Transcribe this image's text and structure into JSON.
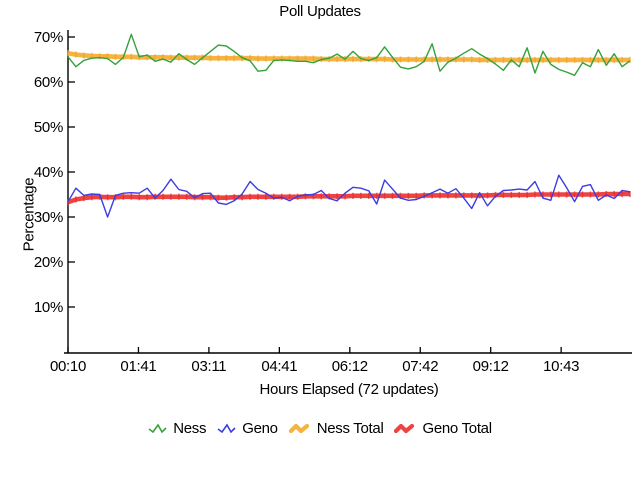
{
  "title": "Poll Updates",
  "chart_data": {
    "type": "line",
    "title": "Poll Updates",
    "xlabel": "Hours Elapsed (72 updates)",
    "ylabel": "Percentage",
    "x_tick_labels": [
      "00:10",
      "01:41",
      "03:11",
      "04:41",
      "06:12",
      "07:42",
      "09:12",
      "10:43"
    ],
    "y_ticks": [
      10,
      20,
      30,
      40,
      50,
      60,
      70
    ],
    "y_tick_suffix": "%",
    "ylim": [
      0,
      71.8
    ],
    "grid": false,
    "legend_position": "bottom",
    "axis_color": "#000000",
    "series": [
      {
        "name": "Ness",
        "color": "#35a13b",
        "style": "thin",
        "values": [
          65.6,
          63.4,
          64.8,
          65.3,
          65.4,
          65.2,
          63.9,
          65.5,
          70.6,
          65.6,
          66.0,
          64.6,
          65.1,
          64.4,
          66.3,
          65.0,
          63.9,
          65.4,
          66.8,
          68.2,
          68.0,
          66.8,
          65.4,
          64.7,
          62.4,
          62.6,
          64.8,
          64.9,
          64.8,
          64.6,
          64.6,
          64.3,
          65.0,
          65.3,
          66.2,
          65.1,
          66.8,
          65.2,
          64.8,
          65.4,
          67.8,
          65.5,
          63.3,
          62.9,
          63.4,
          64.6,
          68.5,
          62.4,
          64.4,
          65.3,
          66.4,
          67.4,
          66.2,
          65.2,
          64.0,
          62.6,
          64.9,
          63.4,
          67.6,
          62.0,
          66.8,
          63.9,
          62.8,
          62.2,
          61.5,
          64.3,
          63.4,
          67.2,
          63.7,
          66.3,
          63.4,
          64.7
        ]
      },
      {
        "name": "Geno",
        "color": "#3c3ce2",
        "style": "thin",
        "values": [
          33.4,
          36.4,
          34.8,
          35.1,
          35.0,
          30.0,
          34.8,
          35.3,
          35.4,
          35.3,
          36.4,
          34.2,
          35.9,
          38.4,
          36.1,
          35.7,
          34.3,
          35.2,
          35.3,
          33.1,
          32.8,
          33.6,
          35.1,
          37.9,
          36.1,
          35.3,
          34.2,
          34.4,
          33.6,
          34.6,
          34.9,
          35.0,
          35.9,
          34.1,
          33.6,
          35.3,
          36.6,
          36.4,
          35.8,
          32.9,
          38.2,
          36.2,
          34.2,
          33.7,
          33.9,
          34.6,
          35.4,
          36.2,
          35.3,
          36.3,
          34.2,
          31.9,
          35.4,
          32.5,
          34.6,
          35.9,
          36.0,
          36.2,
          36.0,
          37.9,
          34.2,
          33.7,
          39.3,
          36.5,
          33.4,
          36.8,
          37.2,
          33.7,
          34.9,
          34.1,
          35.9,
          35.6
        ]
      },
      {
        "name": "Ness Total",
        "color": "#f6b33f",
        "marker_color": "#efa42c",
        "style": "thick",
        "values": [
          66.4,
          66.1,
          65.9,
          65.8,
          65.7,
          65.7,
          65.6,
          65.6,
          65.6,
          65.5,
          65.5,
          65.5,
          65.5,
          65.4,
          65.4,
          65.4,
          65.4,
          65.4,
          65.3,
          65.3,
          65.3,
          65.3,
          65.3,
          65.3,
          65.2,
          65.2,
          65.2,
          65.2,
          65.2,
          65.2,
          65.2,
          65.2,
          65.1,
          65.1,
          65.1,
          65.1,
          65.1,
          65.1,
          65.1,
          65.1,
          65.1,
          65.0,
          65.0,
          65.0,
          65.0,
          65.0,
          65.0,
          65.0,
          65.0,
          65.0,
          65.0,
          65.0,
          64.9,
          64.9,
          64.9,
          64.9,
          64.9,
          64.9,
          64.9,
          64.9,
          64.9,
          64.9,
          64.9,
          64.9,
          64.9,
          64.9,
          64.9,
          64.9,
          64.9,
          64.9,
          64.9,
          64.9
        ]
      },
      {
        "name": "Geno Total",
        "color": "#ef4343",
        "marker_color": "#e22d2d",
        "style": "thick",
        "values": [
          33.3,
          33.9,
          34.2,
          34.4,
          34.5,
          34.4,
          34.4,
          34.5,
          34.5,
          34.4,
          34.4,
          34.5,
          34.5,
          34.5,
          34.5,
          34.5,
          34.4,
          34.4,
          34.4,
          34.3,
          34.3,
          34.4,
          34.4,
          34.5,
          34.5,
          34.5,
          34.5,
          34.5,
          34.5,
          34.5,
          34.6,
          34.6,
          34.6,
          34.6,
          34.6,
          34.6,
          34.7,
          34.7,
          34.7,
          34.7,
          34.7,
          34.7,
          34.7,
          34.7,
          34.7,
          34.8,
          34.8,
          34.8,
          34.8,
          34.8,
          34.8,
          34.8,
          34.8,
          34.8,
          34.9,
          34.9,
          34.9,
          34.9,
          34.9,
          35.0,
          35.0,
          35.0,
          35.0,
          35.0,
          35.0,
          35.0,
          35.0,
          35.0,
          35.1,
          35.1,
          35.1,
          35.1
        ]
      }
    ]
  }
}
